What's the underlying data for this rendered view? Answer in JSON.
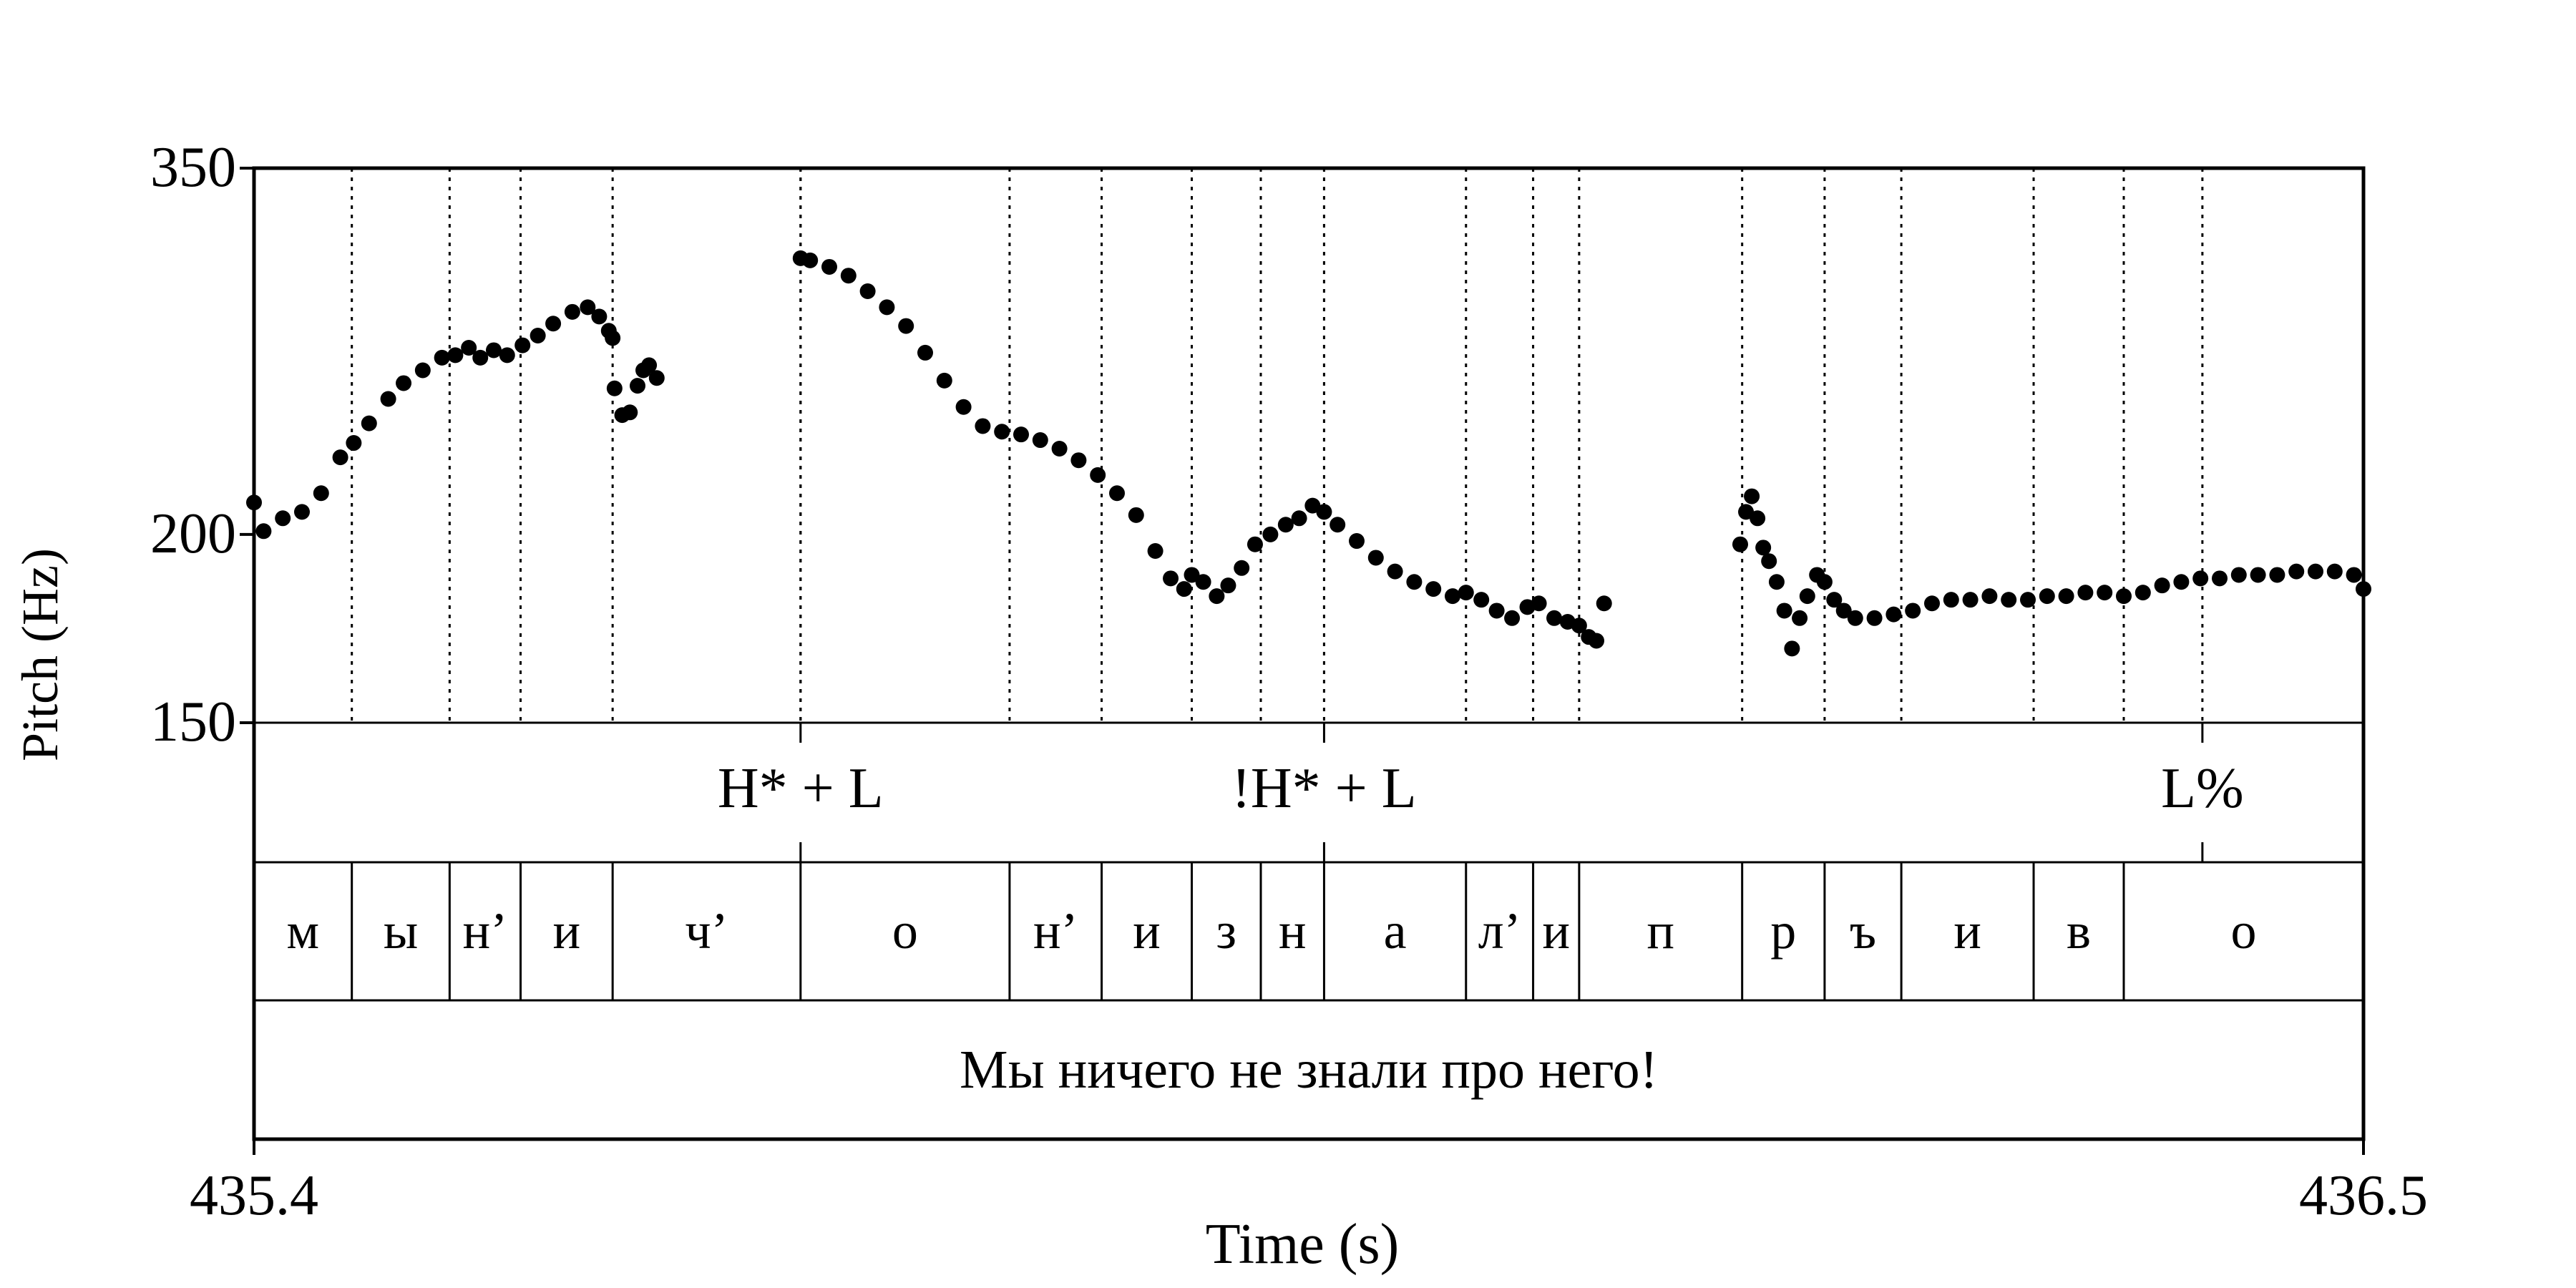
{
  "chart_data": {
    "type": "scatter",
    "xlabel": "Time (s)",
    "ylabel": "Pitch (Hz)",
    "xlim": [
      435.4,
      436.5
    ],
    "ylim": [
      150,
      350
    ],
    "y_scale": "log",
    "yticks": [
      150,
      200,
      350
    ],
    "xtick_labels": [
      "435.4",
      "436.5"
    ],
    "ytick_labels": [
      "150",
      "200",
      "350"
    ],
    "grid": false,
    "tiers": [
      {
        "name": "tones",
        "type": "point",
        "points": [
          {
            "t": 435.685,
            "label": "H* + L"
          },
          {
            "t": 435.958,
            "label": "!H* + L"
          },
          {
            "t": 436.416,
            "label": "L%"
          }
        ]
      },
      {
        "name": "segments",
        "type": "interval",
        "boundaries": [
          435.4,
          435.451,
          435.502,
          435.539,
          435.587,
          435.685,
          435.794,
          435.842,
          435.889,
          435.925,
          435.958,
          436.032,
          436.067,
          436.091,
          436.176,
          436.219,
          436.259,
          436.328,
          436.375,
          436.5
        ],
        "labels": [
          "м",
          "ы",
          "н’",
          "и",
          "ч’",
          "о",
          "н’",
          "и",
          "з",
          "н",
          "а",
          "л’",
          "и",
          "п",
          "р",
          "ъ",
          "и",
          "в",
          "о"
        ]
      },
      {
        "name": "sentence",
        "type": "interval",
        "boundaries": [
          435.4,
          436.5
        ],
        "labels": [
          "Мы ничего не знали про него!"
        ]
      }
    ],
    "pitch_contour": [
      {
        "t": [
          435.4,
          435.405,
          435.415,
          435.425,
          435.435,
          435.445,
          435.452,
          435.46,
          435.47,
          435.478,
          435.488,
          435.498,
          435.505,
          435.512,
          435.518,
          435.525,
          435.532,
          435.54,
          435.548,
          435.556,
          435.566,
          435.574,
          435.58,
          435.585,
          435.587
        ],
        "f0": [
          210,
          201,
          205,
          207,
          213,
          225,
          230,
          237,
          246,
          252,
          257,
          262,
          263,
          266,
          262,
          265,
          263,
          267,
          271,
          276,
          281,
          283,
          279,
          273,
          270
        ]
      },
      {
        "t": [
          435.588,
          435.592,
          435.596,
          435.6,
          435.603,
          435.606,
          435.61
        ],
        "f0": [
          250,
          240,
          241,
          251,
          257,
          259,
          254
        ]
      },
      {
        "t": [
          435.685,
          435.69,
          435.7,
          435.71,
          435.72,
          435.73,
          435.74,
          435.75,
          435.76,
          435.77,
          435.78,
          435.79,
          435.8,
          435.81,
          435.82,
          435.83,
          435.84,
          435.85,
          435.86,
          435.87,
          435.878,
          435.885,
          435.889,
          435.895,
          435.902,
          435.908,
          435.915,
          435.922,
          435.93,
          435.938,
          435.945,
          435.952,
          435.958,
          435.965,
          435.975,
          435.985,
          435.995,
          436.005,
          436.015,
          436.025,
          436.032,
          436.04,
          436.048,
          436.056,
          436.064,
          436.07,
          436.078,
          436.085,
          436.091,
          436.096,
          436.1,
          436.104
        ],
        "f0": [
          305,
          304,
          301,
          297,
          290,
          283,
          275,
          264,
          253,
          243,
          236,
          234,
          233,
          231,
          228,
          224,
          219,
          213,
          206,
          195,
          187,
          184,
          188,
          186,
          182,
          185,
          190,
          197,
          200,
          203,
          205,
          209,
          207,
          203,
          198,
          193,
          189,
          186,
          184,
          182,
          183,
          181,
          178,
          176,
          179,
          180,
          176,
          175,
          174,
          171,
          170,
          180
        ]
      },
      {
        "t": [
          436.175,
          436.178,
          436.181,
          436.184,
          436.187,
          436.19,
          436.194,
          436.198,
          436.202,
          436.206,
          436.21,
          436.215,
          436.219,
          436.224,
          436.229,
          436.235,
          436.245,
          436.255,
          436.265,
          436.275,
          436.285,
          436.295,
          436.305,
          436.315,
          436.325,
          436.335,
          436.345,
          436.355,
          436.365,
          436.375,
          436.385,
          436.395,
          436.405,
          436.415,
          436.425,
          436.435,
          436.445,
          436.455,
          436.465,
          436.475,
          436.485,
          436.495,
          436.5
        ],
        "f0": [
          197,
          207,
          212,
          205,
          196,
          192,
          186,
          178,
          168,
          176,
          182,
          188,
          186,
          181,
          178,
          176,
          176,
          177,
          178,
          180,
          181,
          181,
          182,
          181,
          181,
          182,
          182,
          183,
          183,
          182,
          183,
          185,
          186,
          187,
          187,
          188,
          188,
          188,
          189,
          189,
          189,
          188,
          184
        ]
      }
    ]
  }
}
